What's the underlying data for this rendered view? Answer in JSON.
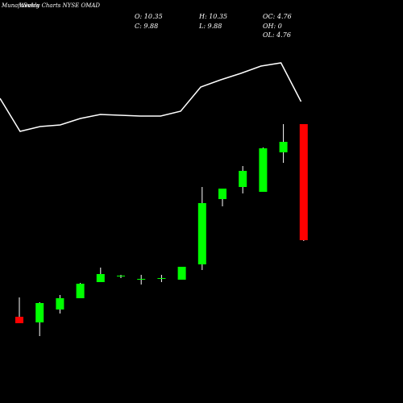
{
  "header": {
    "brand_overlap": "MunafaSutra",
    "title": "Weekly Charts NYSE OMAD"
  },
  "stats": {
    "open": "O: 10.35",
    "high": "H: 10.35",
    "oc": "OC: 4.76",
    "close": "C: 9.88",
    "low": "L: 9.88",
    "oh": "OH: 0",
    "ol": "OL: 4.76"
  },
  "colors": {
    "background": "#000000",
    "up": "#00ff00",
    "down": "#ff0000",
    "line": "#ffffff",
    "text": "#ffffff"
  },
  "chart_data": {
    "type": "candlestick",
    "y_range": [
      0,
      500
    ],
    "candles": [
      {
        "open": 107,
        "high": 131,
        "low": 100,
        "close": 99,
        "color": "down"
      },
      {
        "open": 100,
        "high": 125,
        "low": 83,
        "close": 124,
        "color": "up"
      },
      {
        "open": 116,
        "high": 134,
        "low": 111,
        "close": 130,
        "color": "up"
      },
      {
        "open": 130,
        "high": 149,
        "low": 130,
        "close": 148,
        "color": "up"
      },
      {
        "open": 150,
        "high": 168,
        "low": 150,
        "close": 160,
        "color": "up"
      },
      {
        "open": 157,
        "high": 159,
        "low": 155,
        "close": 158,
        "color": "up"
      },
      {
        "open": 154,
        "high": 159,
        "low": 147,
        "close": 154,
        "color": "up"
      },
      {
        "open": 154,
        "high": 159,
        "low": 150,
        "close": 155,
        "color": "up"
      },
      {
        "open": 153,
        "high": 169,
        "low": 153,
        "close": 169,
        "color": "up"
      },
      {
        "open": 172,
        "high": 268,
        "low": 165,
        "close": 248,
        "color": "up"
      },
      {
        "open": 253,
        "high": 266,
        "low": 244,
        "close": 266,
        "color": "up"
      },
      {
        "open": 268,
        "high": 294,
        "low": 260,
        "close": 288,
        "color": "up"
      },
      {
        "open": 262,
        "high": 317,
        "low": 262,
        "close": 316,
        "color": "up"
      },
      {
        "open": 311,
        "high": 346,
        "low": 298,
        "close": 324,
        "color": "up"
      },
      {
        "open": 346,
        "high": 346,
        "low": 201,
        "close": 202,
        "color": "down"
      }
    ],
    "line_series": [
      378,
      337,
      343,
      345,
      353,
      358,
      357,
      356,
      356,
      362,
      392,
      401,
      409,
      418,
      422,
      374
    ]
  }
}
